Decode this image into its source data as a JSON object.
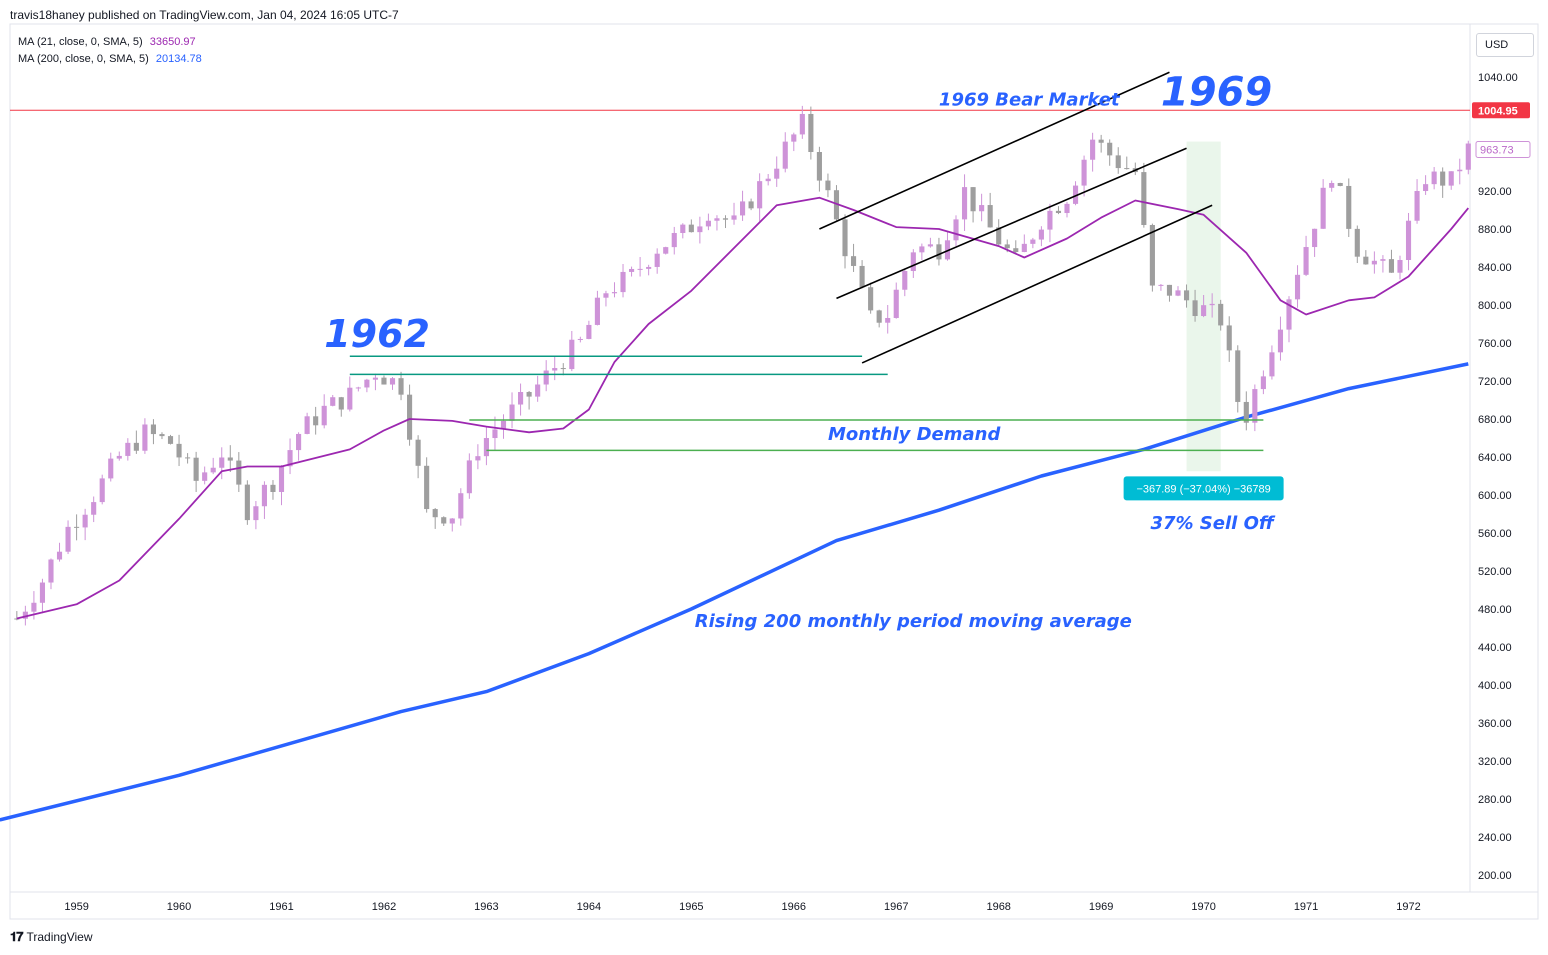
{
  "header": {
    "publisher": "travis18haney published on TradingView.com, Jan 04, 2024 16:05 UTC-7"
  },
  "indicators": [
    {
      "label": "MA (21, close, 0, SMA, 5)",
      "value": "33650.97",
      "color": "#9c27b0"
    },
    {
      "label": "MA (200, close, 0, SMA, 5)",
      "value": "20134.78",
      "color": "#2962ff"
    }
  ],
  "currency_button": "USD",
  "footer": {
    "brand": "TradingView"
  },
  "colors": {
    "bull": "#ce93d8",
    "bear": "#9e9e9e",
    "ma21": "#9c27b0",
    "ma200": "#2962ff",
    "price_line": "#f23645",
    "teal_line": "#089981",
    "green_line": "#4caf50",
    "measure_bg": "#00bcd4",
    "highlight": "#e8f5e9"
  },
  "chart_data": {
    "type": "candlestick",
    "title": "",
    "xlabel": "",
    "ylabel": "",
    "ylim": [
      180,
      1060
    ],
    "xlim": [
      1958.35,
      1972.6
    ],
    "x_ticks": [
      "1959",
      "1960",
      "1961",
      "1962",
      "1963",
      "1964",
      "1965",
      "1966",
      "1967",
      "1968",
      "1969",
      "1970",
      "1971",
      "1972"
    ],
    "y_ticks": [
      "1040.00",
      "920.00",
      "880.00",
      "840.00",
      "800.00",
      "760.00",
      "720.00",
      "680.00",
      "640.00",
      "600.00",
      "560.00",
      "520.00",
      "480.00",
      "440.00",
      "400.00",
      "360.00",
      "320.00",
      "280.00",
      "240.00",
      "200.00"
    ],
    "price_labels": [
      {
        "value": 1004.95,
        "text": "1004.95",
        "style": "red"
      },
      {
        "value": 963.73,
        "text": "963.73",
        "style": "outline"
      }
    ],
    "close_series": [
      {
        "date": "1958-06",
        "close": 470
      },
      {
        "date": "1958-09",
        "close": 510
      },
      {
        "date": "1958-12",
        "close": 565
      },
      {
        "date": "1959-03",
        "close": 600
      },
      {
        "date": "1959-06",
        "close": 640
      },
      {
        "date": "1959-09",
        "close": 665
      },
      {
        "date": "1959-12",
        "close": 655
      },
      {
        "date": "1960-03",
        "close": 615
      },
      {
        "date": "1960-06",
        "close": 645
      },
      {
        "date": "1960-09",
        "close": 585
      },
      {
        "date": "1960-12",
        "close": 615
      },
      {
        "date": "1961-03",
        "close": 665
      },
      {
        "date": "1961-06",
        "close": 690
      },
      {
        "date": "1961-09",
        "close": 705
      },
      {
        "date": "1961-12",
        "close": 730
      },
      {
        "date": "1962-03",
        "close": 715
      },
      {
        "date": "1962-06",
        "close": 580
      },
      {
        "date": "1962-09",
        "close": 580
      },
      {
        "date": "1962-12",
        "close": 650
      },
      {
        "date": "1963-03",
        "close": 680
      },
      {
        "date": "1963-06",
        "close": 705
      },
      {
        "date": "1963-09",
        "close": 735
      },
      {
        "date": "1963-12",
        "close": 760
      },
      {
        "date": "1964-03",
        "close": 815
      },
      {
        "date": "1964-06",
        "close": 830
      },
      {
        "date": "1964-09",
        "close": 860
      },
      {
        "date": "1964-12",
        "close": 875
      },
      {
        "date": "1965-03",
        "close": 900
      },
      {
        "date": "1965-06",
        "close": 885
      },
      {
        "date": "1965-09",
        "close": 925
      },
      {
        "date": "1965-12",
        "close": 965
      },
      {
        "date": "1966-02",
        "close": 990
      },
      {
        "date": "1966-05",
        "close": 915
      },
      {
        "date": "1966-07",
        "close": 860
      },
      {
        "date": "1966-10",
        "close": 785
      },
      {
        "date": "1966-12",
        "close": 790
      },
      {
        "date": "1967-03",
        "close": 860
      },
      {
        "date": "1967-06",
        "close": 860
      },
      {
        "date": "1967-09",
        "close": 920
      },
      {
        "date": "1967-12",
        "close": 880
      },
      {
        "date": "1968-03",
        "close": 845
      },
      {
        "date": "1968-06",
        "close": 890
      },
      {
        "date": "1968-09",
        "close": 915
      },
      {
        "date": "1968-12",
        "close": 975
      },
      {
        "date": "1969-03",
        "close": 950
      },
      {
        "date": "1969-05",
        "close": 940
      },
      {
        "date": "1969-07",
        "close": 815
      },
      {
        "date": "1969-09",
        "close": 815
      },
      {
        "date": "1969-12",
        "close": 800
      },
      {
        "date": "1970-03",
        "close": 785
      },
      {
        "date": "1970-05",
        "close": 700
      },
      {
        "date": "1970-06",
        "close": 684
      },
      {
        "date": "1970-09",
        "close": 760
      },
      {
        "date": "1970-12",
        "close": 838
      },
      {
        "date": "1971-04",
        "close": 940
      },
      {
        "date": "1971-07",
        "close": 860
      },
      {
        "date": "1971-11",
        "close": 830
      },
      {
        "date": "1972-03",
        "close": 935
      },
      {
        "date": "1972-06",
        "close": 930
      },
      {
        "date": "1972-08",
        "close": 963.73
      }
    ],
    "ma21": [
      {
        "date": "1958-06",
        "value": 470
      },
      {
        "date": "1959-01",
        "value": 485
      },
      {
        "date": "1959-06",
        "value": 510
      },
      {
        "date": "1960-01",
        "value": 575
      },
      {
        "date": "1960-06",
        "value": 625
      },
      {
        "date": "1960-09",
        "value": 630
      },
      {
        "date": "1961-01",
        "value": 630
      },
      {
        "date": "1961-09",
        "value": 648
      },
      {
        "date": "1962-01",
        "value": 668
      },
      {
        "date": "1962-04",
        "value": 680
      },
      {
        "date": "1962-09",
        "value": 678
      },
      {
        "date": "1963-01",
        "value": 672
      },
      {
        "date": "1963-06",
        "value": 666
      },
      {
        "date": "1963-10",
        "value": 670
      },
      {
        "date": "1964-01",
        "value": 690
      },
      {
        "date": "1964-04",
        "value": 740
      },
      {
        "date": "1964-08",
        "value": 780
      },
      {
        "date": "1965-01",
        "value": 815
      },
      {
        "date": "1965-06",
        "value": 860
      },
      {
        "date": "1965-11",
        "value": 905
      },
      {
        "date": "1966-04",
        "value": 913
      },
      {
        "date": "1966-08",
        "value": 900
      },
      {
        "date": "1967-01",
        "value": 882
      },
      {
        "date": "1967-06",
        "value": 880
      },
      {
        "date": "1968-01",
        "value": 862
      },
      {
        "date": "1968-04",
        "value": 850
      },
      {
        "date": "1968-09",
        "value": 870
      },
      {
        "date": "1969-01",
        "value": 892
      },
      {
        "date": "1969-05",
        "value": 910
      },
      {
        "date": "1969-10",
        "value": 901
      },
      {
        "date": "1970-01",
        "value": 895
      },
      {
        "date": "1970-06",
        "value": 855
      },
      {
        "date": "1970-10",
        "value": 805
      },
      {
        "date": "1971-01",
        "value": 790
      },
      {
        "date": "1971-06",
        "value": 805
      },
      {
        "date": "1971-09",
        "value": 808
      },
      {
        "date": "1972-01",
        "value": 830
      },
      {
        "date": "1972-06",
        "value": 880
      },
      {
        "date": "1972-08",
        "value": 902
      }
    ],
    "ma200": [
      {
        "date": "1958-04",
        "value": 258
      },
      {
        "date": "1960-01",
        "value": 305
      },
      {
        "date": "1962-03",
        "value": 372
      },
      {
        "date": "1963-01",
        "value": 393
      },
      {
        "date": "1964-01",
        "value": 433
      },
      {
        "date": "1965-01",
        "value": 480
      },
      {
        "date": "1966-06",
        "value": 552
      },
      {
        "date": "1967-06",
        "value": 584
      },
      {
        "date": "1968-06",
        "value": 620
      },
      {
        "date": "1969-06",
        "value": 648
      },
      {
        "date": "1970-06",
        "value": 682
      },
      {
        "date": "1971-06",
        "value": 712
      },
      {
        "date": "1972-08",
        "value": 738
      }
    ],
    "annotations": {
      "label_1962": "1962",
      "label_1969": "1969",
      "bear_market": "1969 Bear Market",
      "monthly_demand": "Monthly Demand",
      "sell_off": "37% Sell Off",
      "ma_note": "Rising 200 monthly period moving average",
      "measure": "−367.89 (−37.04%) −36789"
    },
    "horizontal_levels": [
      {
        "value": 746,
        "from": "1961-09",
        "to": "1966-09",
        "color": "teal"
      },
      {
        "value": 727,
        "from": "1961-09",
        "to": "1966-12",
        "color": "teal"
      },
      {
        "value": 679,
        "from": "1962-11",
        "to": "1970-08",
        "color": "green"
      },
      {
        "value": 647,
        "from": "1963-01",
        "to": "1970-08",
        "color": "green"
      }
    ],
    "channel_lines": [
      {
        "from": [
          "1966-04",
          880
        ],
        "to": [
          "1969-09",
          1045
        ]
      },
      {
        "from": [
          "1966-06",
          807
        ],
        "to": [
          "1969-11",
          965
        ]
      },
      {
        "from": [
          "1966-09",
          739
        ],
        "to": [
          "1970-02",
          905
        ]
      }
    ]
  }
}
